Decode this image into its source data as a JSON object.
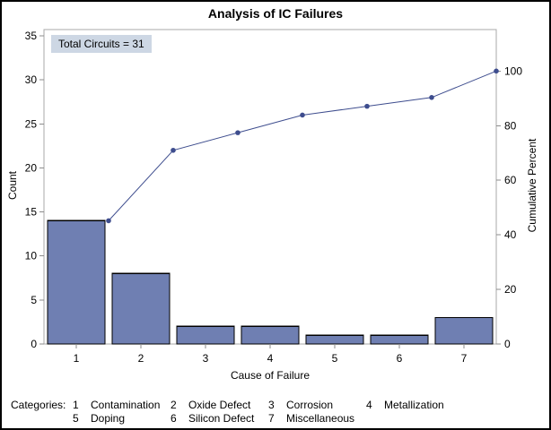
{
  "window": {
    "background": "#ffffff",
    "border_color": "#000000"
  },
  "chart_data": {
    "type": "bar",
    "subtype": "pareto-with-cumulative-line",
    "title": "Analysis of IC Failures",
    "annotation": "Total Circuits = 31",
    "total_circuits": 31,
    "xlabel": "Cause of Failure",
    "ylabel_left": "Count",
    "ylabel_right": "Cumulative Percent",
    "categories": [
      "1",
      "2",
      "3",
      "4",
      "5",
      "6",
      "7"
    ],
    "bar_values": [
      14,
      8,
      2,
      2,
      1,
      1,
      3
    ],
    "cumulative_counts": [
      14,
      22,
      24,
      26,
      27,
      28,
      31
    ],
    "cumulative_percents": [
      45.2,
      71.0,
      77.4,
      83.9,
      87.1,
      90.3,
      100
    ],
    "left_axis_ticks": [
      0,
      5,
      10,
      15,
      20,
      25,
      30,
      35
    ],
    "right_axis_ticks": [
      0,
      20,
      40,
      60,
      80,
      100
    ],
    "ylim_left": [
      0,
      35
    ],
    "ylim_right": [
      0,
      100
    ],
    "grid": "off",
    "legend_position": "bottom",
    "colors": {
      "bar_fill": "#6F7FB2",
      "bar_border": "#000000",
      "line": "#3E4D8E",
      "marker": "#3E4D8E",
      "frame": "#A8A8A8",
      "tick": "#8C8C8C",
      "annotation_bg": "#CDD7E4"
    }
  },
  "legend": {
    "label": "Categories:",
    "items": [
      {
        "num": "1",
        "name": "Contamination"
      },
      {
        "num": "2",
        "name": "Oxide Defect"
      },
      {
        "num": "3",
        "name": "Corrosion"
      },
      {
        "num": "4",
        "name": "Metallization"
      },
      {
        "num": "5",
        "name": "Doping"
      },
      {
        "num": "6",
        "name": "Silicon Defect"
      },
      {
        "num": "7",
        "name": "Miscellaneous"
      }
    ]
  }
}
